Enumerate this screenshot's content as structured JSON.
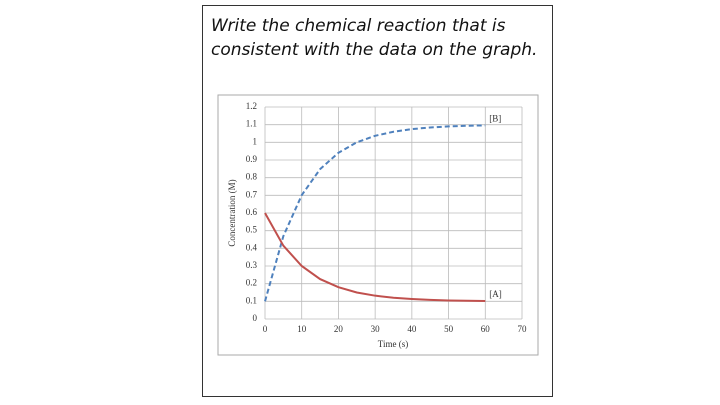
{
  "prompt": "Write the chemical reaction that is consistent with the data on the graph.",
  "chart_data": {
    "type": "line",
    "x_label": "Time (s)",
    "y_label": "Concentration (M)",
    "x": [
      0,
      5,
      10,
      15,
      20,
      25,
      30,
      35,
      40,
      45,
      50,
      55,
      60
    ],
    "series": [
      {
        "name": "[B]",
        "color": "#4f81bd",
        "dashed": true,
        "values": [
          0.1,
          0.469,
          0.701,
          0.848,
          0.941,
          1.0,
          1.037,
          1.06,
          1.075,
          1.084,
          1.09,
          1.094,
          1.096
        ]
      },
      {
        "name": "[A]",
        "color": "#c0504d",
        "dashed": false,
        "values": [
          0.6,
          0.415,
          0.3,
          0.226,
          0.18,
          0.15,
          0.132,
          0.12,
          0.113,
          0.108,
          0.105,
          0.103,
          0.102
        ]
      }
    ],
    "xlim": [
      0,
      70
    ],
    "xticks": [
      0,
      10,
      20,
      30,
      40,
      50,
      60,
      70
    ],
    "ylim": [
      0,
      1.2
    ],
    "yticks": [
      0,
      0.1,
      0.2,
      0.3,
      0.4,
      0.5,
      0.6,
      0.7,
      0.8,
      0.9,
      1,
      1.1,
      1.2
    ],
    "grid": true
  }
}
